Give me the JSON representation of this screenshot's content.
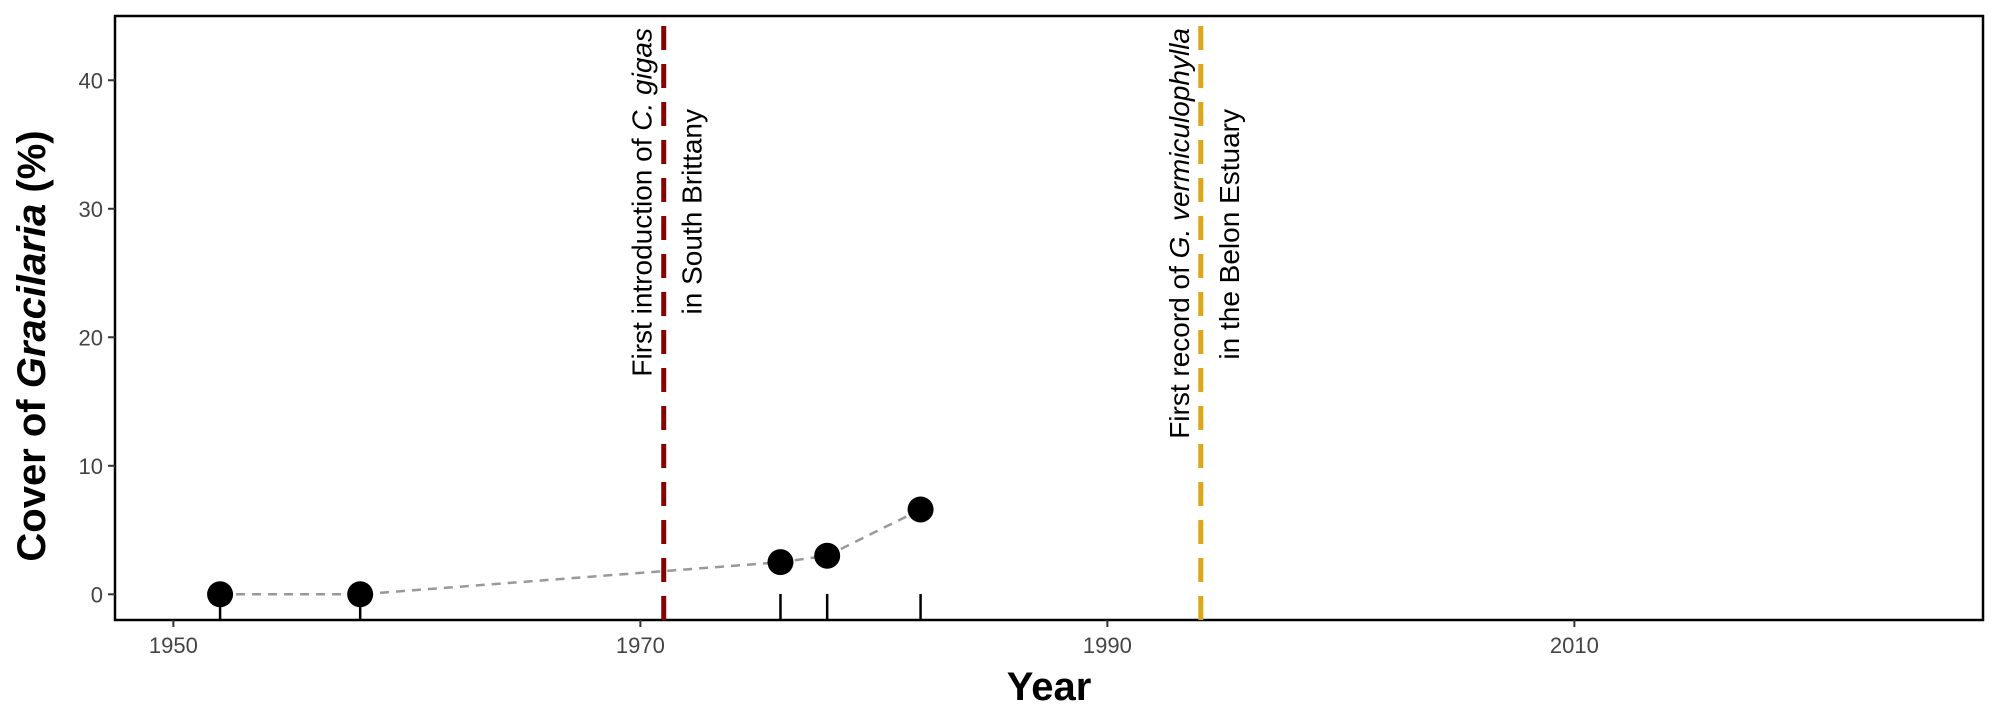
{
  "chart_data": {
    "type": "scatter",
    "xlabel": "Year",
    "ylabel_parts": [
      "Cover of ",
      "Gracilaria",
      " (%)"
    ],
    "xlim": [
      1947.5,
      2027.5
    ],
    "ylim": [
      -2,
      45
    ],
    "xticks": [
      1950,
      1970,
      1990,
      2010
    ],
    "yticks": [
      0,
      10,
      20,
      30,
      40
    ],
    "grid": false,
    "series": [
      {
        "points": [
          {
            "x": 1952,
            "y": 0
          },
          {
            "x": 1958,
            "y": 0
          },
          {
            "x": 1976,
            "y": 2.5
          },
          {
            "x": 1978,
            "y": 3.0
          },
          {
            "x": 1982,
            "y": 6.6
          }
        ],
        "marker_color": "#000000",
        "line_style": "dashed",
        "line_color": "#999999"
      }
    ],
    "vlines": [
      {
        "x": 1971,
        "color": "#8B0000",
        "label_line1": [
          "First introduction of ",
          "C. gigas"
        ],
        "label_line2": "in South Brittany"
      },
      {
        "x": 1994,
        "color": "#DAA520",
        "label_line1": [
          "First record of ",
          "G. vermiculophylla"
        ],
        "label_line2": "in the Belon Estuary"
      }
    ]
  }
}
